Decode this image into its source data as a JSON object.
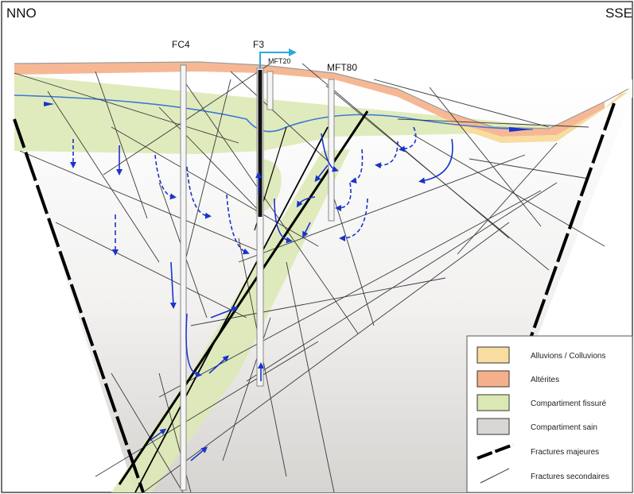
{
  "orientation": {
    "left": "NNO",
    "right": "SSE"
  },
  "wells": [
    {
      "id": "FC4",
      "label": "FC4"
    },
    {
      "id": "F3",
      "label": "F3"
    },
    {
      "id": "MFT20",
      "label": "MFT20"
    },
    {
      "id": "MFT80",
      "label": "MFT80"
    }
  ],
  "legend": {
    "items": [
      {
        "label": "Alluvions / Colluvions",
        "color": "#f8dca0"
      },
      {
        "label": "Altérites",
        "color": "#f4b08a"
      },
      {
        "label": "Compartiment fissuré",
        "color": "#dbe8b3"
      },
      {
        "label": "Compartiment sain",
        "color": "#d9d6d3"
      },
      {
        "label": "Fractures majeures",
        "symbol": "dashed-thick-line"
      },
      {
        "label": "Fractures secondaires",
        "symbol": "thin-line"
      }
    ]
  },
  "colors": {
    "flow_arrow": "#1a33cc",
    "water_table": "#3a78d8",
    "major_fracture": "#000000",
    "secondary_fracture": "#3a3a3a"
  }
}
